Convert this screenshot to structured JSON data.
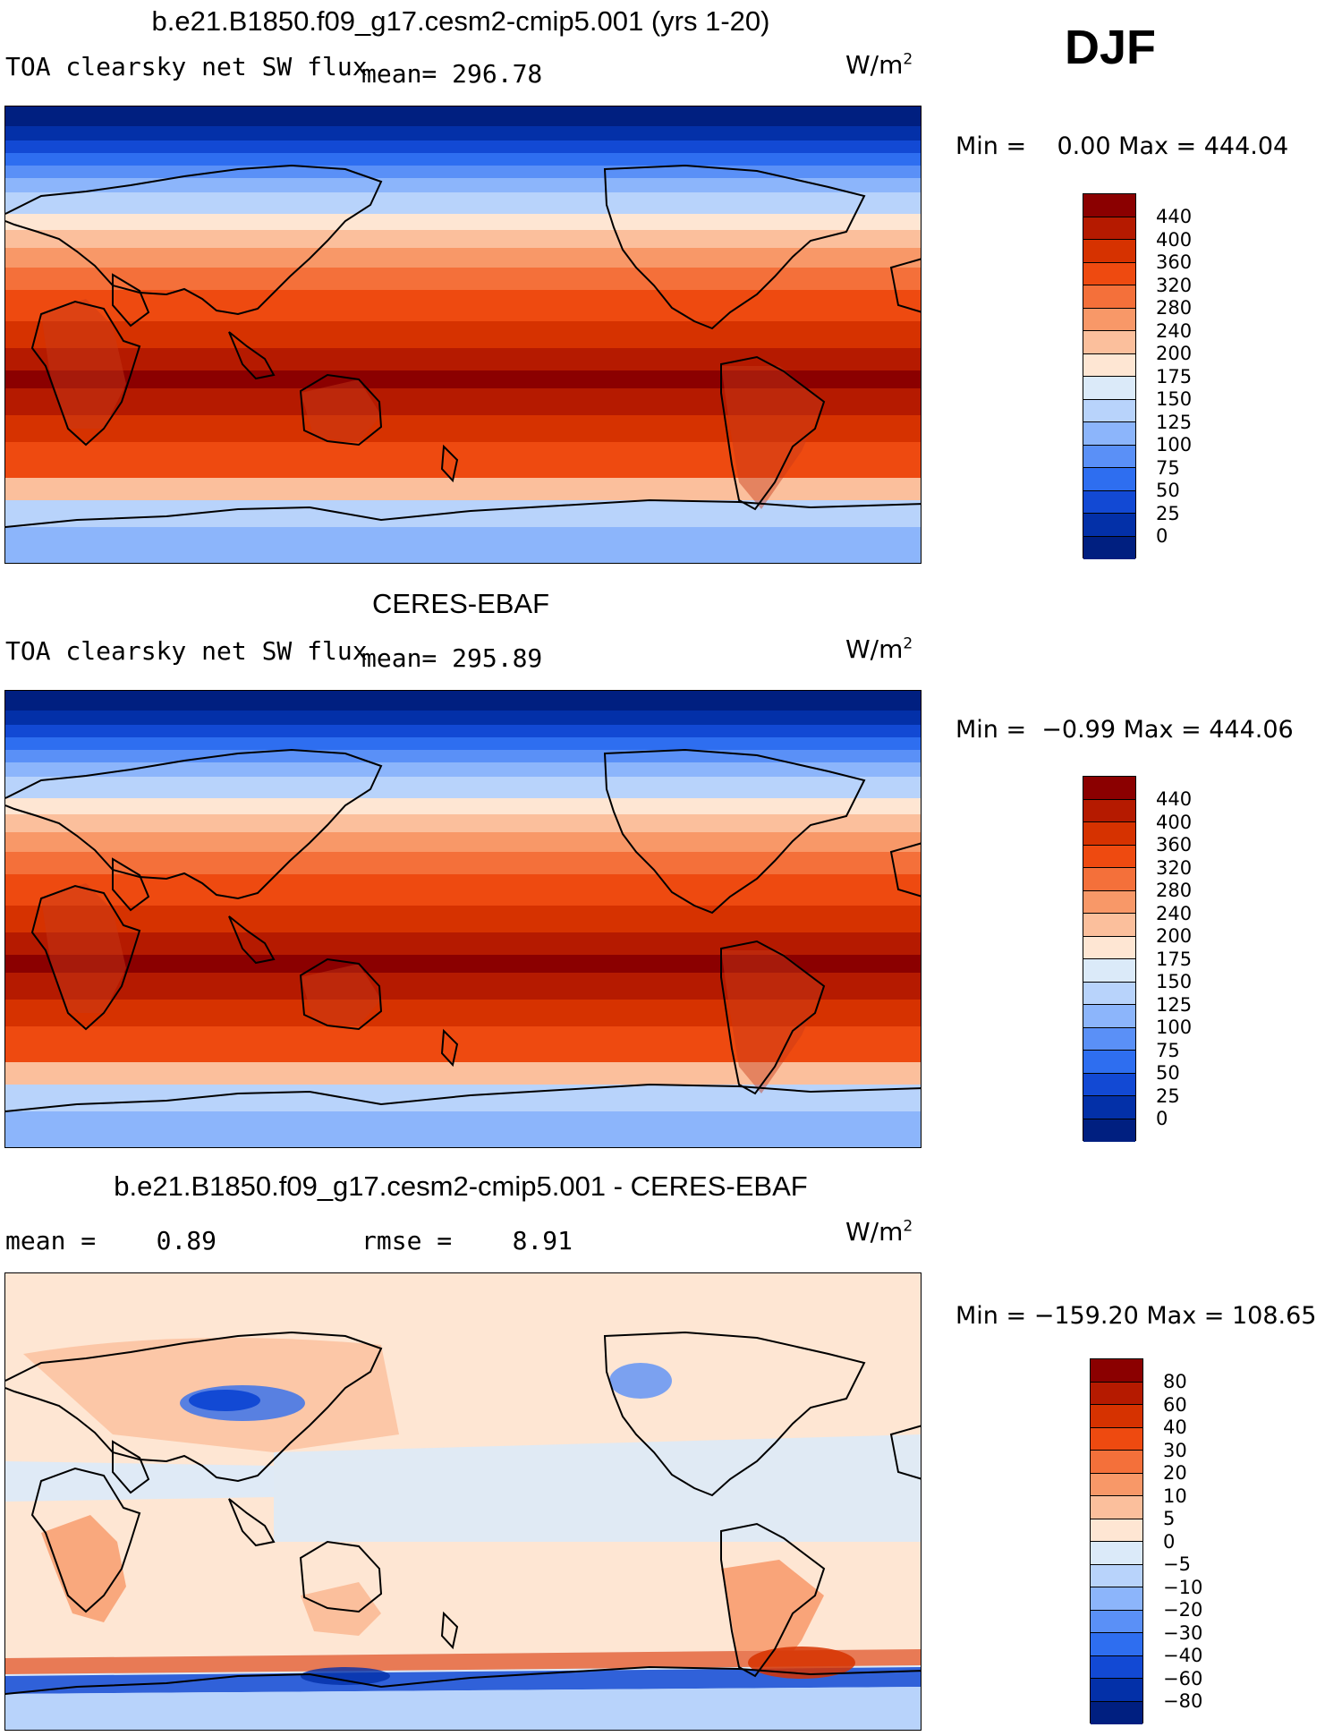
{
  "season": "DJF",
  "panels": [
    {
      "title": "b.e21.B1850.f09_g17.cesm2-cmip5.001 (yrs 1-20)",
      "variable": "TOA clearsky net SW flux",
      "stat": "mean= 296.78",
      "units_base": "W/m",
      "units_exp": "2",
      "minmax": "Min =    0.00 Max = 444.04",
      "levels": [
        "440",
        "400",
        "360",
        "320",
        "280",
        "240",
        "200",
        "175",
        "150",
        "125",
        "100",
        "75",
        "50",
        "25",
        "0"
      ],
      "colors": [
        "#8b0000",
        "#b51a00",
        "#d63200",
        "#ee4a10",
        "#f4703a",
        "#f89868",
        "#fbbf9c",
        "#fee6d3",
        "#dbeaf9",
        "#b8d3fb",
        "#8cb5fb",
        "#5a90f7",
        "#2e6ef0",
        "#1249d4",
        "#0330a8",
        "#001f80"
      ]
    },
    {
      "title": "CERES-EBAF",
      "variable": "TOA clearsky net SW flux",
      "stat": "mean= 295.89",
      "units_base": "W/m",
      "units_exp": "2",
      "minmax": "Min =  −0.99 Max = 444.06",
      "levels": [
        "440",
        "400",
        "360",
        "320",
        "280",
        "240",
        "200",
        "175",
        "150",
        "125",
        "100",
        "75",
        "50",
        "25",
        "0"
      ],
      "colors": [
        "#8b0000",
        "#b51a00",
        "#d63200",
        "#ee4a10",
        "#f4703a",
        "#f89868",
        "#fbbf9c",
        "#fee6d3",
        "#dbeaf9",
        "#b8d3fb",
        "#8cb5fb",
        "#5a90f7",
        "#2e6ef0",
        "#1249d4",
        "#0330a8",
        "#001f80"
      ]
    },
    {
      "title": "b.e21.B1850.f09_g17.cesm2-cmip5.001 - CERES-EBAF",
      "stat_left": "mean =    0.89",
      "stat_right": "rmse =    8.91",
      "units_base": "W/m",
      "units_exp": "2",
      "minmax": "Min = −159.20 Max = 108.65",
      "levels": [
        "80",
        "60",
        "40",
        "30",
        "20",
        "10",
        "5",
        "0",
        "−5",
        "−10",
        "−20",
        "−30",
        "−40",
        "−60",
        "−80"
      ],
      "colors": [
        "#8b0000",
        "#b51a00",
        "#d63200",
        "#ee4a10",
        "#f4703a",
        "#f89868",
        "#fbbf9c",
        "#fee6d3",
        "#dbeaf9",
        "#b8d3fb",
        "#8cb5fb",
        "#5a90f7",
        "#2e6ef0",
        "#1249d4",
        "#0330a8",
        "#001f80"
      ]
    }
  ]
}
